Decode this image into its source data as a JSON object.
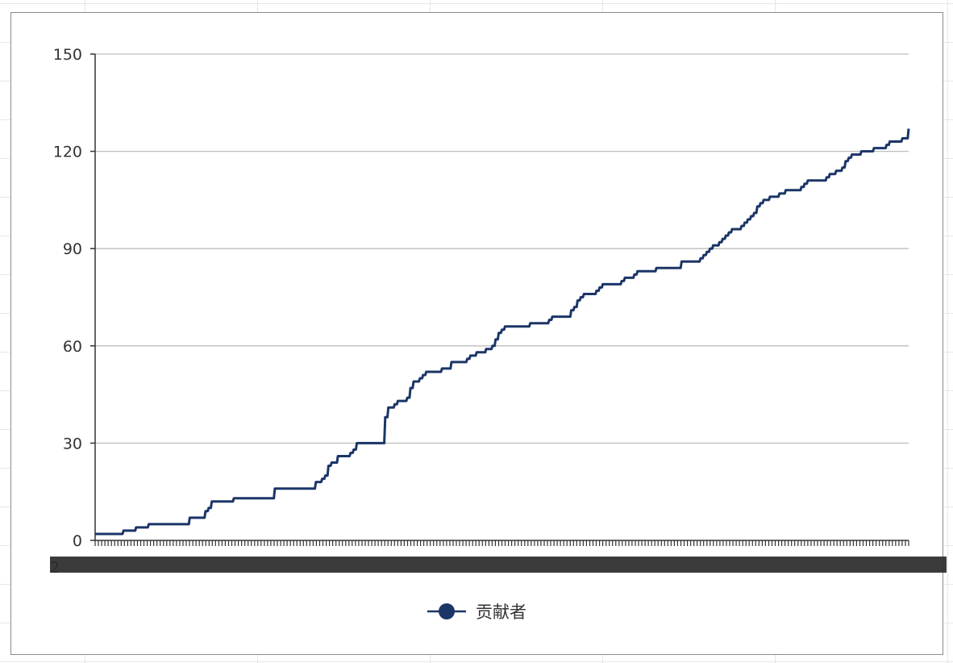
{
  "chart_data": {
    "type": "line",
    "title": "",
    "xlabel": "",
    "ylabel": "",
    "ylim": [
      0,
      150
    ],
    "yticks": [
      0,
      30,
      60,
      90,
      120,
      150
    ],
    "grid": true,
    "legend_position": "bottom-center",
    "x_tick_labels_note_visible": "2",
    "series": [
      {
        "name": "贡献者",
        "color": "#1b3567",
        "values": [
          2,
          2,
          2,
          2,
          2,
          2,
          2,
          2,
          2,
          3,
          3,
          3,
          3,
          4,
          4,
          4,
          4,
          5,
          5,
          5,
          5,
          5,
          5,
          5,
          5,
          5,
          5,
          5,
          5,
          5,
          7,
          7,
          7,
          7,
          7,
          9,
          10,
          12,
          12,
          12,
          12,
          12,
          12,
          12,
          13,
          13,
          13,
          13,
          13,
          13,
          13,
          13,
          13,
          13,
          13,
          13,
          13,
          16,
          16,
          16,
          16,
          16,
          16,
          16,
          16,
          16,
          16,
          16,
          16,
          16,
          18,
          18,
          19,
          20,
          23,
          24,
          24,
          26,
          26,
          26,
          26,
          27,
          28,
          30,
          30,
          30,
          30,
          30,
          30,
          30,
          30,
          30,
          38,
          41,
          41,
          42,
          43,
          43,
          43,
          44,
          47,
          49,
          49,
          50,
          51,
          52,
          52,
          52,
          52,
          52,
          53,
          53,
          53,
          55,
          55,
          55,
          55,
          55,
          56,
          57,
          57,
          58,
          58,
          58,
          59,
          59,
          60,
          62,
          64,
          65,
          66,
          66,
          66,
          66,
          66,
          66,
          66,
          66,
          67,
          67,
          67,
          67,
          67,
          67,
          68,
          69,
          69,
          69,
          69,
          69,
          69,
          71,
          72,
          74,
          75,
          76,
          76,
          76,
          76,
          77,
          78,
          79,
          79,
          79,
          79,
          79,
          79,
          80,
          81,
          81,
          81,
          82,
          83,
          83,
          83,
          83,
          83,
          83,
          84,
          84,
          84,
          84,
          84,
          84,
          84,
          84,
          86,
          86,
          86,
          86,
          86,
          86,
          87,
          88,
          89,
          90,
          91,
          91,
          92,
          93,
          94,
          95,
          96,
          96,
          96,
          97,
          98,
          99,
          100,
          101,
          103,
          104,
          105,
          105,
          106,
          106,
          106,
          107,
          107,
          108,
          108,
          108,
          108,
          108,
          109,
          110,
          111,
          111,
          111,
          111,
          111,
          111,
          112,
          113,
          113,
          114,
          114,
          115,
          117,
          118,
          119,
          119,
          119,
          120,
          120,
          120,
          120,
          121,
          121,
          121,
          121,
          122,
          123,
          123,
          123,
          123,
          124,
          124,
          127
        ]
      }
    ]
  }
}
